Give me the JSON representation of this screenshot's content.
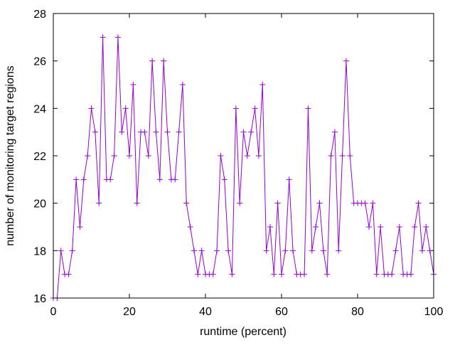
{
  "chart_data": {
    "type": "line",
    "title": "",
    "xlabel": "runtime (percent)",
    "ylabel": "number of monitoring target regions",
    "xlim": [
      0,
      100
    ],
    "ylim": [
      16,
      28
    ],
    "xticks": [
      "0",
      "20",
      "40",
      "60",
      "80",
      "100"
    ],
    "yticks": [
      "16",
      "18",
      "20",
      "22",
      "24",
      "26",
      "28"
    ],
    "grid": false,
    "marker": "plus",
    "series": [
      {
        "color": "#9400d3",
        "x": [
          0,
          1,
          2,
          3,
          4,
          5,
          6,
          7,
          8,
          9,
          10,
          11,
          12,
          13,
          14,
          15,
          16,
          17,
          18,
          19,
          20,
          21,
          22,
          23,
          24,
          25,
          26,
          27,
          28,
          29,
          30,
          31,
          32,
          33,
          34,
          35,
          36,
          37,
          38,
          39,
          40,
          41,
          42,
          43,
          44,
          45,
          46,
          47,
          48,
          49,
          50,
          51,
          52,
          53,
          54,
          55,
          56,
          57,
          58,
          59,
          60,
          61,
          62,
          63,
          64,
          65,
          66,
          67,
          68,
          69,
          70,
          71,
          72,
          73,
          74,
          75,
          76,
          77,
          78,
          79,
          80,
          81,
          82,
          83,
          84,
          85,
          86,
          87,
          88,
          89,
          90,
          91,
          92,
          93,
          94,
          95,
          96,
          97,
          98,
          99,
          100
        ],
        "y": [
          16,
          16,
          18,
          17,
          17,
          18,
          21,
          19,
          21,
          22,
          24,
          23,
          20,
          27,
          21,
          21,
          22,
          27,
          23,
          24,
          22,
          25,
          20,
          23,
          23,
          22,
          26,
          23,
          21,
          26,
          23,
          21,
          21,
          23,
          25,
          20,
          19,
          18,
          17,
          18,
          17,
          17,
          17,
          18,
          22,
          21,
          18,
          17,
          24,
          20,
          23,
          22,
          23,
          24,
          22,
          25,
          18,
          19,
          17,
          20,
          17,
          18,
          21,
          18,
          17,
          17,
          17,
          24,
          18,
          19,
          20,
          18,
          17,
          22,
          23,
          18,
          22,
          26,
          22,
          20,
          20,
          20,
          20,
          19,
          20,
          17,
          19,
          17,
          17,
          17,
          18,
          19,
          17,
          17,
          17,
          19,
          20,
          18,
          19,
          18,
          17
        ]
      }
    ]
  }
}
